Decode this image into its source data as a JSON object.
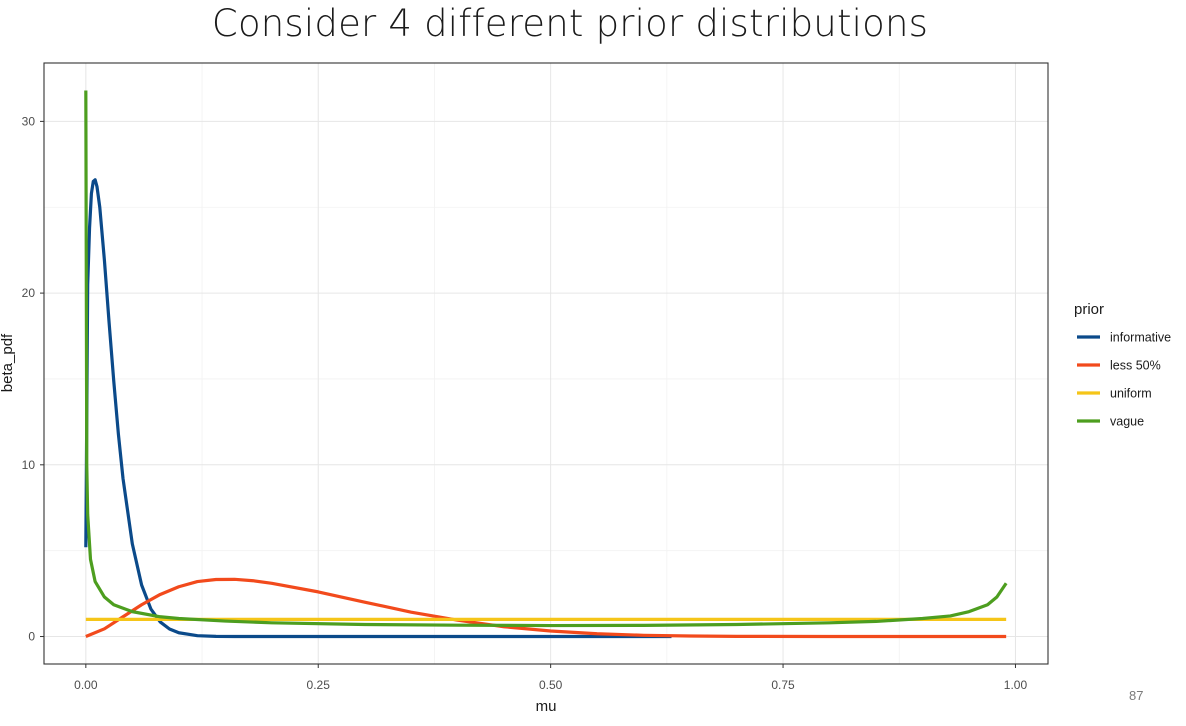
{
  "slide": {
    "title": "Consider 4 different prior distributions",
    "page_number": "87"
  },
  "chart_data": {
    "type": "line",
    "title": "",
    "xlabel": "mu",
    "ylabel": "beta_pdf",
    "xlim": [
      -0.045,
      1.035
    ],
    "ylim": [
      -1.6,
      33.4
    ],
    "xticks": [
      0.0,
      0.25,
      0.5,
      0.75,
      1.0
    ],
    "xtick_labels": [
      "0.00",
      "0.25",
      "0.50",
      "0.75",
      "1.00"
    ],
    "yticks": [
      0,
      10,
      20,
      30
    ],
    "ytick_labels": [
      "0",
      "10",
      "20",
      "30"
    ],
    "grid": true,
    "legend": {
      "title": "prior",
      "position": "right"
    },
    "colors": {
      "informative": "#0b4a8a",
      "less 50%": "#f24a1c",
      "uniform": "#f5c518",
      "vague": "#4d9e1f"
    },
    "series": [
      {
        "name": "informative",
        "x": [
          0.0,
          0.002,
          0.004,
          0.006,
          0.008,
          0.01,
          0.012,
          0.015,
          0.02,
          0.025,
          0.03,
          0.035,
          0.04,
          0.05,
          0.06,
          0.07,
          0.08,
          0.09,
          0.1,
          0.12,
          0.14,
          0.16,
          0.2,
          0.3,
          0.4,
          0.5,
          0.63
        ],
        "y": [
          5.2,
          20.5,
          23.8,
          25.8,
          26.5,
          26.6,
          26.2,
          25.0,
          21.9,
          18.3,
          14.9,
          11.8,
          9.2,
          5.4,
          3.0,
          1.6,
          0.85,
          0.44,
          0.22,
          0.05,
          0.01,
          0.0,
          0.0,
          0.0,
          0.0,
          0.0,
          0.0
        ]
      },
      {
        "name": "less 50%",
        "x": [
          0.0,
          0.02,
          0.04,
          0.06,
          0.08,
          0.1,
          0.12,
          0.14,
          0.16,
          0.18,
          0.2,
          0.25,
          0.3,
          0.35,
          0.4,
          0.45,
          0.5,
          0.55,
          0.6,
          0.65,
          0.7,
          0.8,
          0.99
        ],
        "y": [
          0.0,
          0.45,
          1.15,
          1.85,
          2.45,
          2.9,
          3.2,
          3.32,
          3.33,
          3.25,
          3.1,
          2.6,
          2.0,
          1.42,
          0.95,
          0.57,
          0.32,
          0.16,
          0.07,
          0.03,
          0.01,
          0.0,
          0.0
        ]
      },
      {
        "name": "uniform",
        "x": [
          0.0,
          0.99
        ],
        "y": [
          1.0,
          1.0
        ]
      },
      {
        "name": "vague",
        "x": [
          0.0,
          0.001,
          0.002,
          0.005,
          0.01,
          0.02,
          0.03,
          0.05,
          0.08,
          0.1,
          0.15,
          0.2,
          0.3,
          0.4,
          0.5,
          0.6,
          0.7,
          0.8,
          0.85,
          0.9,
          0.93,
          0.95,
          0.97,
          0.98,
          0.99
        ],
        "y": [
          31.8,
          10.0,
          7.1,
          4.5,
          3.2,
          2.3,
          1.85,
          1.45,
          1.15,
          1.05,
          0.9,
          0.8,
          0.7,
          0.66,
          0.64,
          0.65,
          0.7,
          0.8,
          0.88,
          1.05,
          1.2,
          1.45,
          1.85,
          2.3,
          3.1
        ]
      }
    ]
  }
}
